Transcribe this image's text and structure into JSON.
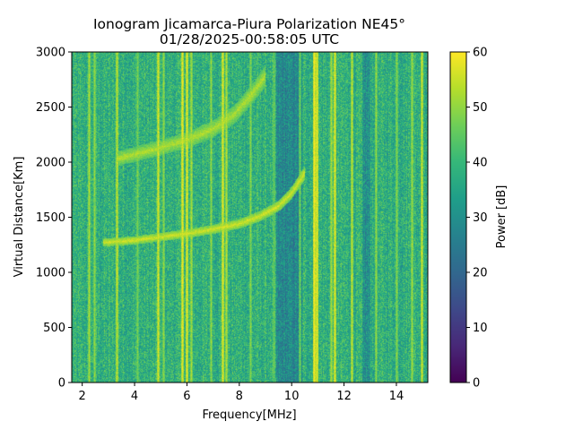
{
  "chart_data": {
    "type": "heatmap",
    "title": "Ionogram Jicamarca-Piura Polarization NE45°",
    "subtitle": "01/28/2025-00:58:05 UTC",
    "xlabel": "Frequency[MHz]",
    "ylabel": "Virtual Distance[Km]",
    "xlim": [
      1.6,
      15.2
    ],
    "ylim": [
      0,
      3000
    ],
    "xticks": [
      2,
      4,
      6,
      8,
      10,
      12,
      14
    ],
    "yticks": [
      0,
      500,
      1000,
      1500,
      2000,
      2500,
      3000
    ],
    "colorbar": {
      "label": "Power [dB]",
      "range": [
        0,
        60
      ],
      "ticks": [
        0,
        10,
        20,
        30,
        40,
        50,
        60
      ],
      "colormap": "viridis",
      "colors": [
        "#440154",
        "#482878",
        "#3e4989",
        "#31688e",
        "#26828e",
        "#1f9e89",
        "#35b779",
        "#6ece58",
        "#b5de2b",
        "#fde725"
      ]
    },
    "background_level_db": 38,
    "echo_traces": [
      {
        "name": "first-hop",
        "points": [
          [
            2.8,
            1270
          ],
          [
            4,
            1290
          ],
          [
            5,
            1320
          ],
          [
            6,
            1350
          ],
          [
            7,
            1390
          ],
          [
            8,
            1440
          ],
          [
            8.8,
            1510
          ],
          [
            9.5,
            1600
          ],
          [
            10.0,
            1720
          ],
          [
            10.5,
            1900
          ]
        ],
        "level_db": 56
      },
      {
        "name": "second-hop",
        "points": [
          [
            3.3,
            2030
          ],
          [
            4,
            2070
          ],
          [
            5,
            2130
          ],
          [
            6,
            2200
          ],
          [
            7,
            2300
          ],
          [
            7.8,
            2430
          ],
          [
            8.5,
            2620
          ],
          [
            9.0,
            2780
          ]
        ],
        "level_db": 53
      }
    ],
    "interference_lines": [
      {
        "freq": 2.25,
        "level_db": 52
      },
      {
        "freq": 2.45,
        "level_db": 50
      },
      {
        "freq": 3.3,
        "level_db": 54
      },
      {
        "freq": 4.1,
        "level_db": 48
      },
      {
        "freq": 4.9,
        "level_db": 56
      },
      {
        "freq": 5.1,
        "level_db": 50
      },
      {
        "freq": 5.8,
        "level_db": 58
      },
      {
        "freq": 6.0,
        "level_db": 57
      },
      {
        "freq": 6.15,
        "level_db": 52
      },
      {
        "freq": 6.9,
        "level_db": 50
      },
      {
        "freq": 7.35,
        "level_db": 57
      },
      {
        "freq": 7.5,
        "level_db": 53
      },
      {
        "freq": 8.4,
        "level_db": 49
      },
      {
        "freq": 9.3,
        "level_db": 46
      },
      {
        "freq": 10.3,
        "level_db": 47
      },
      {
        "freq": 10.85,
        "level_db": 60
      },
      {
        "freq": 10.95,
        "level_db": 58
      },
      {
        "freq": 11.5,
        "level_db": 52
      },
      {
        "freq": 11.65,
        "level_db": 57
      },
      {
        "freq": 12.3,
        "level_db": 54
      },
      {
        "freq": 13.2,
        "level_db": 50
      },
      {
        "freq": 14.0,
        "level_db": 49
      },
      {
        "freq": 14.6,
        "level_db": 51
      },
      {
        "freq": 14.95,
        "level_db": 55
      }
    ],
    "quiet_bands": [
      {
        "from": 9.4,
        "to": 10.4,
        "level_db": 28
      },
      {
        "from": 12.7,
        "to": 13.0,
        "level_db": 30
      }
    ]
  }
}
